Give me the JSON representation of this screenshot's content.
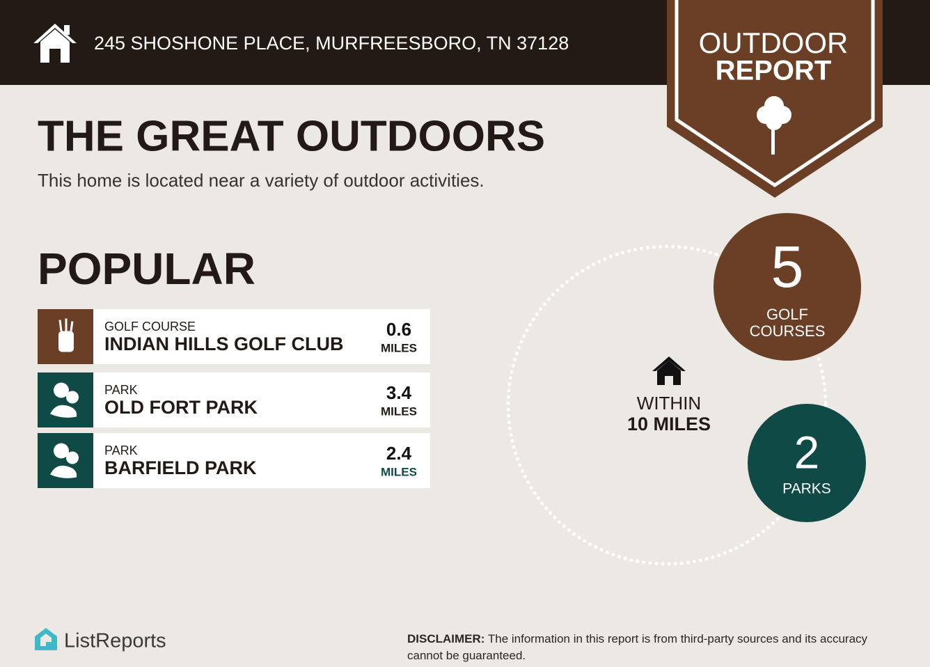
{
  "header": {
    "address": "245 SHOSHONE PLACE, MURFREESBORO, TN 37128"
  },
  "badge": {
    "line1": "OUTDOOR",
    "line2": "REPORT"
  },
  "title": "THE GREAT OUTDOORS",
  "subtitle": "This home is located near a variety of outdoor activities.",
  "section": "POPULAR",
  "places": [
    {
      "category": "GOLF COURSE",
      "name": "INDIAN HILLS GOLF CLUB",
      "distance": "0.6",
      "unit": "MILES"
    },
    {
      "category": "PARK",
      "name": "OLD FORT PARK",
      "distance": "3.4",
      "unit": "MILES"
    },
    {
      "category": "PARK",
      "name": "BARFIELD PARK",
      "distance": "2.4",
      "unit": "MILES"
    }
  ],
  "radius": {
    "line1": "WITHIN",
    "line2": "10 MILES"
  },
  "counts": [
    {
      "count": "5",
      "label_lines": [
        "GOLF",
        "COURSES"
      ]
    },
    {
      "count": "2",
      "label_lines": [
        "PARKS"
      ]
    }
  ],
  "footer": {
    "brand": "ListReports",
    "disclaimer_label": "DISCLAIMER:",
    "disclaimer": "The information in this report is from third-party sources and its accuracy cannot be guaranteed."
  }
}
